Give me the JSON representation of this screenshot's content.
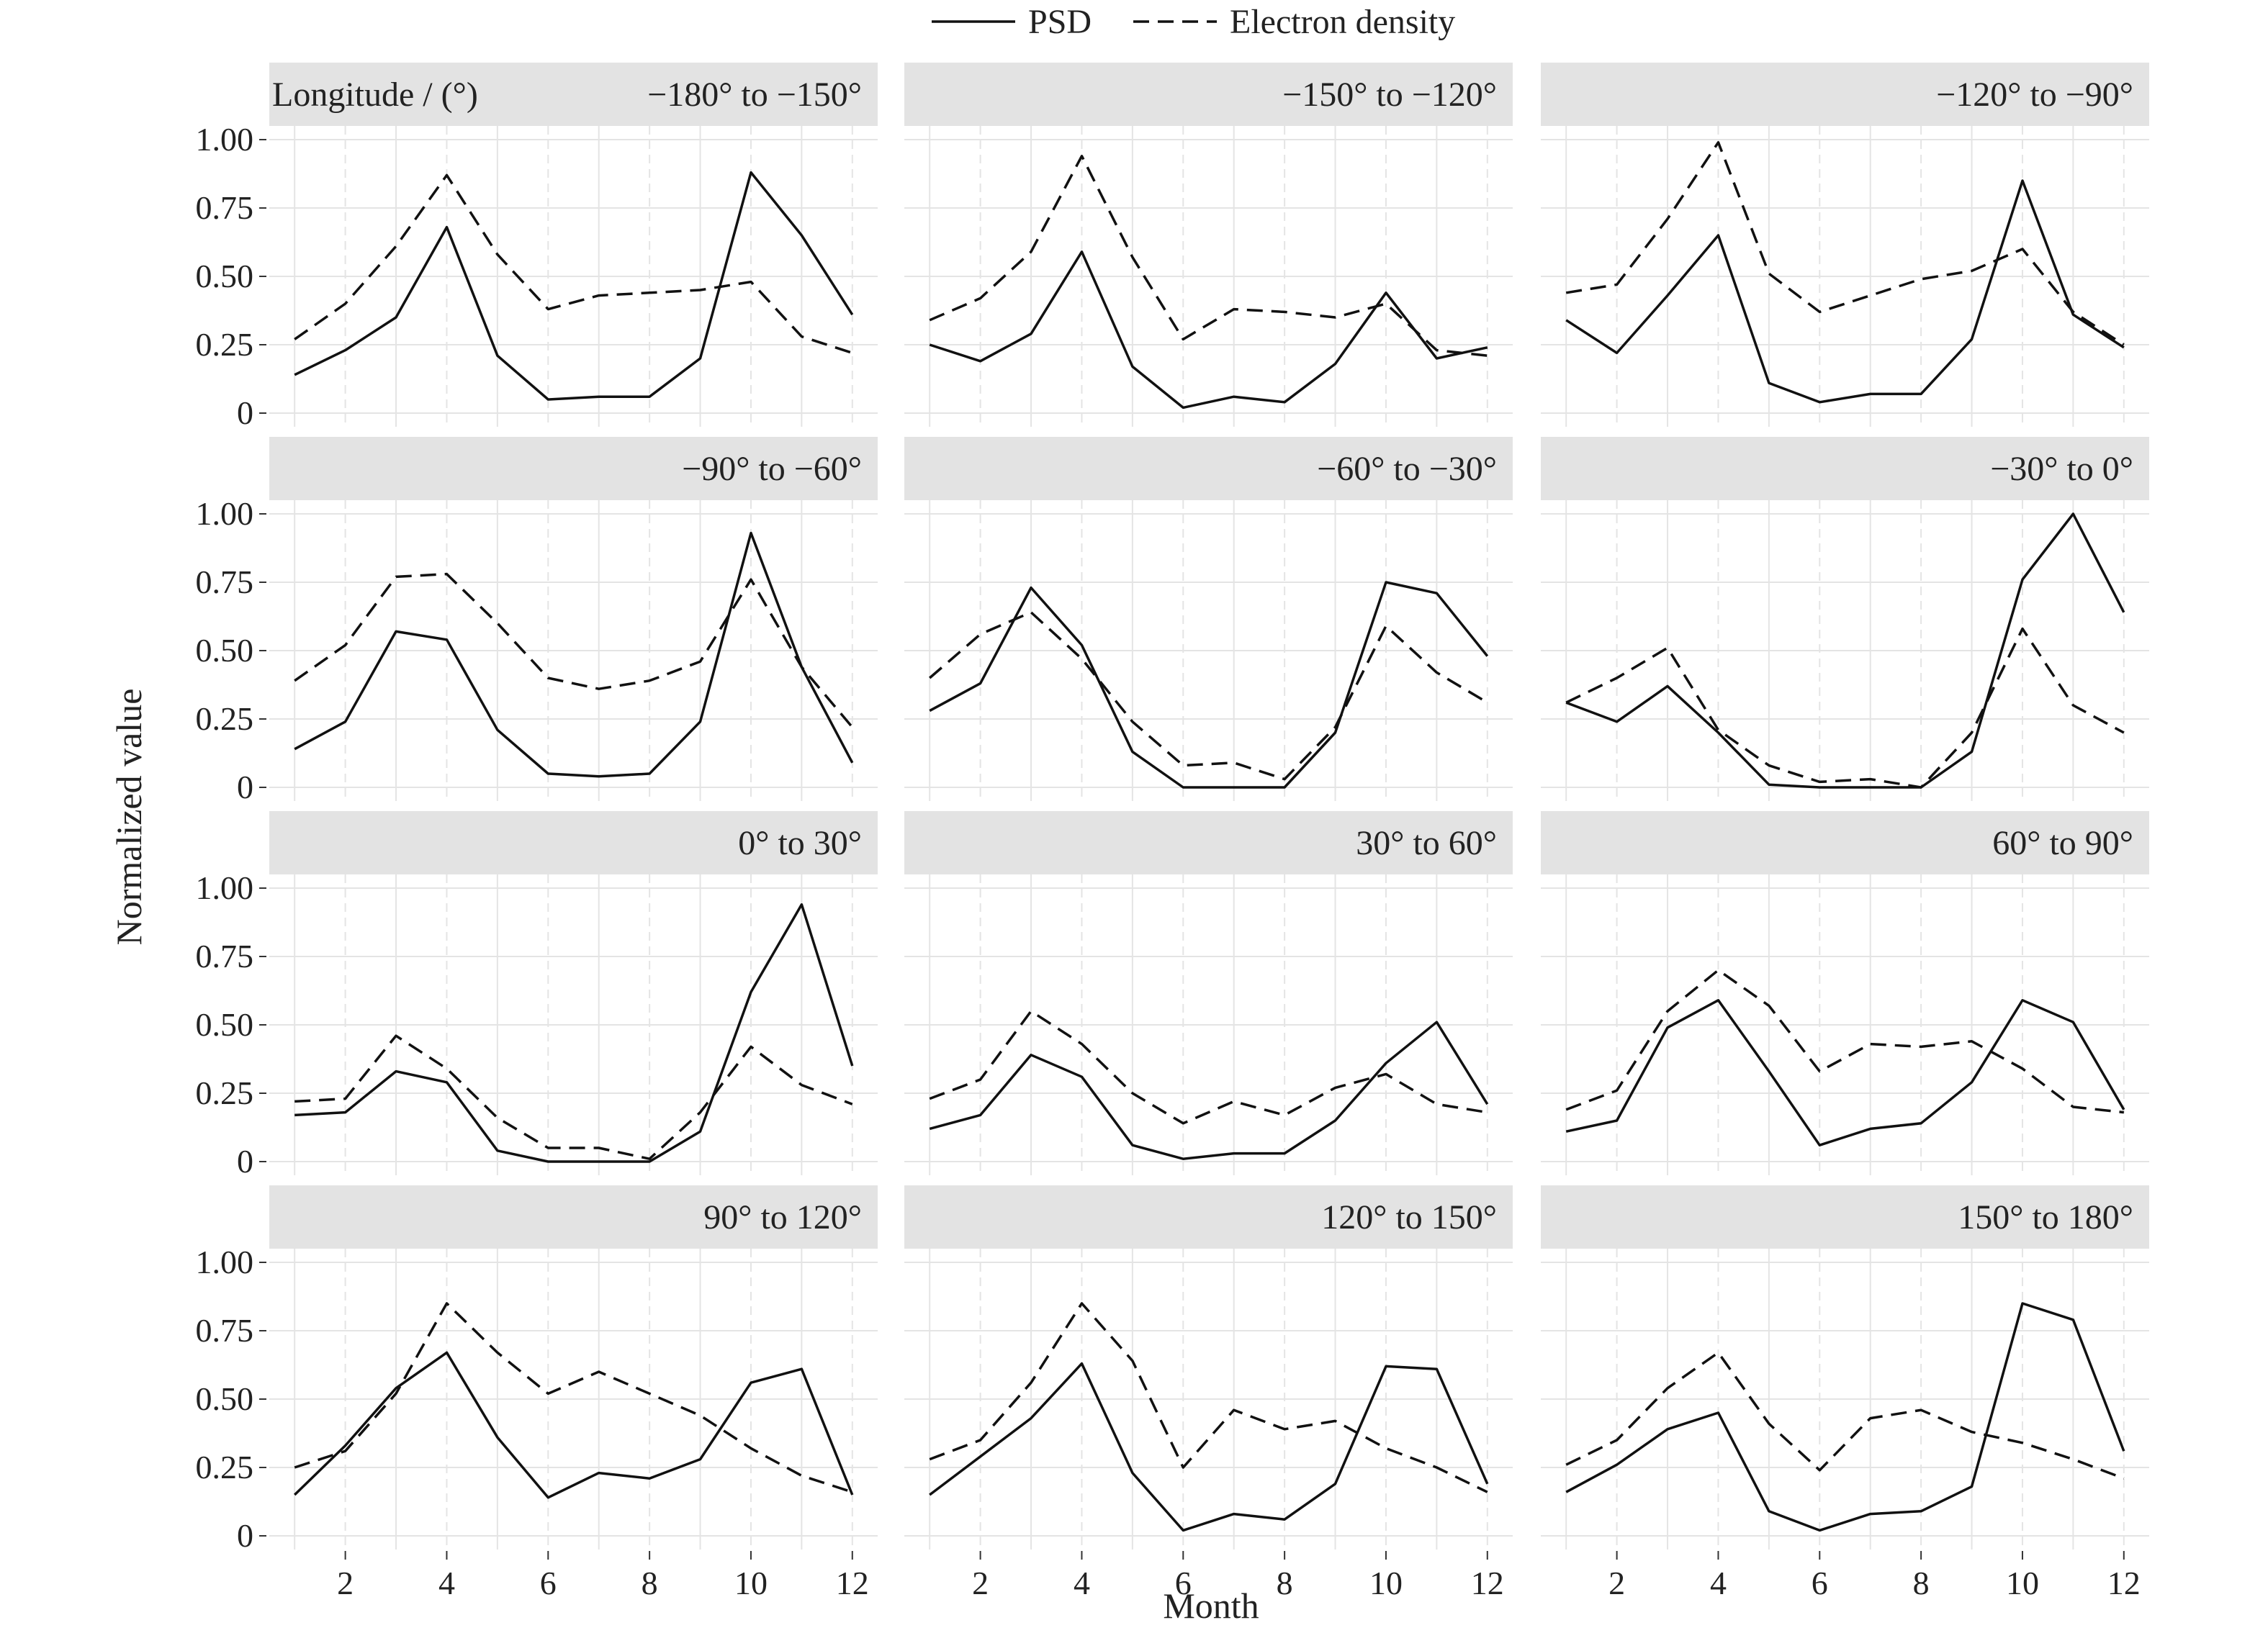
{
  "legend": {
    "psd_label": "PSD",
    "ed_label": "Electron density"
  },
  "axes": {
    "ylabel": "Normalized value",
    "xlabel": "Month",
    "y_ticks": [
      {
        "value": 0,
        "label": "0"
      },
      {
        "value": 0.25,
        "label": "0.25"
      },
      {
        "value": 0.5,
        "label": "0.50"
      },
      {
        "value": 0.75,
        "label": "0.75"
      },
      {
        "value": 1.0,
        "label": "1.00"
      }
    ],
    "x_ticks": [
      2,
      4,
      6,
      8,
      10,
      12
    ]
  },
  "strip_prefix": "Longitude / (°)",
  "chart_data": {
    "type": "line",
    "facet_by": "longitude",
    "x": [
      1,
      2,
      3,
      4,
      5,
      6,
      7,
      8,
      9,
      10,
      11,
      12
    ],
    "xlim": [
      0.5,
      12.5
    ],
    "ylim": [
      -0.05,
      1.05
    ],
    "grid": true,
    "legend_position": "top",
    "series_names": [
      "PSD",
      "Electron density"
    ],
    "panels": [
      {
        "label": "−180° to −150°",
        "psd": [
          0.14,
          0.23,
          0.35,
          0.68,
          0.21,
          0.05,
          0.06,
          0.06,
          0.2,
          0.88,
          0.65,
          0.36
        ],
        "ed": [
          0.27,
          0.4,
          0.61,
          0.87,
          0.58,
          0.38,
          0.43,
          0.44,
          0.45,
          0.48,
          0.28,
          0.22
        ]
      },
      {
        "label": "−150° to −120°",
        "psd": [
          0.25,
          0.19,
          0.29,
          0.59,
          0.17,
          0.02,
          0.06,
          0.04,
          0.18,
          0.44,
          0.2,
          0.24
        ],
        "ed": [
          0.34,
          0.42,
          0.59,
          0.94,
          0.57,
          0.27,
          0.38,
          0.37,
          0.35,
          0.4,
          0.23,
          0.21
        ]
      },
      {
        "label": "−120° to −90°",
        "psd": [
          0.34,
          0.22,
          0.43,
          0.65,
          0.11,
          0.04,
          0.07,
          0.07,
          0.27,
          0.85,
          0.36,
          0.24
        ],
        "ed": [
          0.44,
          0.47,
          0.71,
          0.99,
          0.51,
          0.37,
          0.43,
          0.49,
          0.52,
          0.6,
          0.37,
          0.25
        ]
      },
      {
        "label": "−90° to −60°",
        "psd": [
          0.14,
          0.24,
          0.57,
          0.54,
          0.21,
          0.05,
          0.04,
          0.05,
          0.24,
          0.93,
          0.44,
          0.09
        ],
        "ed": [
          0.39,
          0.52,
          0.77,
          0.78,
          0.6,
          0.4,
          0.36,
          0.39,
          0.46,
          0.76,
          0.44,
          0.22
        ]
      },
      {
        "label": "−60° to −30°",
        "psd": [
          0.28,
          0.38,
          0.73,
          0.52,
          0.13,
          0.0,
          0.0,
          0.0,
          0.2,
          0.75,
          0.71,
          0.48
        ],
        "ed": [
          0.4,
          0.56,
          0.64,
          0.47,
          0.24,
          0.08,
          0.09,
          0.03,
          0.22,
          0.59,
          0.42,
          0.31
        ]
      },
      {
        "label": "−30° to 0°",
        "psd": [
          0.31,
          0.24,
          0.37,
          0.2,
          0.01,
          0.0,
          0.0,
          0.0,
          0.13,
          0.76,
          1.0,
          0.64
        ],
        "ed": [
          0.31,
          0.4,
          0.51,
          0.21,
          0.08,
          0.02,
          0.03,
          0.0,
          0.2,
          0.58,
          0.3,
          0.2
        ]
      },
      {
        "label": "0° to 30°",
        "psd": [
          0.17,
          0.18,
          0.33,
          0.29,
          0.04,
          0.0,
          0.0,
          0.0,
          0.11,
          0.62,
          0.94,
          0.35
        ],
        "ed": [
          0.22,
          0.23,
          0.46,
          0.34,
          0.16,
          0.05,
          0.05,
          0.01,
          0.18,
          0.42,
          0.28,
          0.21
        ]
      },
      {
        "label": "30° to 60°",
        "psd": [
          0.12,
          0.17,
          0.39,
          0.31,
          0.06,
          0.01,
          0.03,
          0.03,
          0.15,
          0.36,
          0.51,
          0.21
        ],
        "ed": [
          0.23,
          0.3,
          0.55,
          0.43,
          0.25,
          0.14,
          0.22,
          0.17,
          0.27,
          0.32,
          0.21,
          0.18
        ]
      },
      {
        "label": "60° to 90°",
        "psd": [
          0.11,
          0.15,
          0.49,
          0.59,
          0.33,
          0.06,
          0.12,
          0.14,
          0.29,
          0.59,
          0.51,
          0.19
        ],
        "ed": [
          0.19,
          0.26,
          0.55,
          0.7,
          0.57,
          0.33,
          0.43,
          0.42,
          0.44,
          0.34,
          0.2,
          0.18
        ]
      },
      {
        "label": "90° to 120°",
        "psd": [
          0.15,
          0.33,
          0.54,
          0.67,
          0.36,
          0.14,
          0.23,
          0.21,
          0.28,
          0.56,
          0.61,
          0.15
        ],
        "ed": [
          0.25,
          0.31,
          0.52,
          0.85,
          0.67,
          0.52,
          0.6,
          0.52,
          0.44,
          0.32,
          0.22,
          0.16
        ]
      },
      {
        "label": "120° to 150°",
        "psd": [
          0.15,
          0.29,
          0.43,
          0.63,
          0.23,
          0.02,
          0.08,
          0.06,
          0.19,
          0.62,
          0.61,
          0.19
        ],
        "ed": [
          0.28,
          0.35,
          0.56,
          0.85,
          0.64,
          0.25,
          0.46,
          0.39,
          0.42,
          0.32,
          0.25,
          0.16
        ]
      },
      {
        "label": "150° to 180°",
        "psd": [
          0.16,
          0.26,
          0.39,
          0.45,
          0.09,
          0.02,
          0.08,
          0.09,
          0.18,
          0.85,
          0.79,
          0.31
        ],
        "ed": [
          0.26,
          0.35,
          0.54,
          0.67,
          0.41,
          0.24,
          0.43,
          0.46,
          0.38,
          0.34,
          0.28,
          0.21
        ]
      }
    ]
  }
}
